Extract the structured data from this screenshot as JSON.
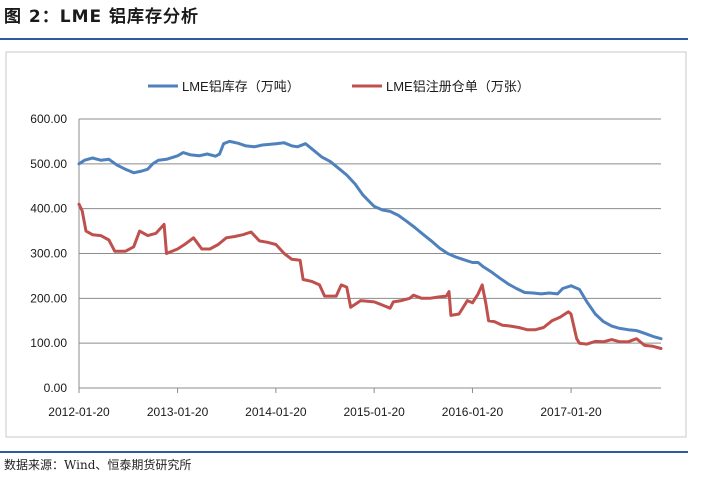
{
  "figure": {
    "title": "图 2：LME 铝库存分析",
    "source": "数据来源：Wind、恒泰期货研究所"
  },
  "chart_data": {
    "type": "line",
    "title": "",
    "xlabel": "",
    "ylabel": "",
    "ylim": [
      0,
      600
    ],
    "yticks": [
      "0.00",
      "100.00",
      "200.00",
      "300.00",
      "400.00",
      "500.00",
      "600.00"
    ],
    "xticks": [
      "2012-01-20",
      "2013-01-20",
      "2014-01-20",
      "2015-01-20",
      "2016-01-20",
      "2017-01-20"
    ],
    "x_range": [
      "2012-01-20",
      "2017-12-20"
    ],
    "grid": "horizontal",
    "legend_position": "top",
    "series": [
      {
        "name": "LME铝库存（万吨）",
        "color": "#4f81bd",
        "points": [
          [
            "2012-01-20",
            500
          ],
          [
            "2012-02-10",
            508
          ],
          [
            "2012-03-10",
            513
          ],
          [
            "2012-04-10",
            508
          ],
          [
            "2012-05-10",
            510
          ],
          [
            "2012-06-10",
            497
          ],
          [
            "2012-07-10",
            488
          ],
          [
            "2012-08-10",
            480
          ],
          [
            "2012-09-10",
            484
          ],
          [
            "2012-10-01",
            488
          ],
          [
            "2012-10-20",
            500
          ],
          [
            "2012-11-10",
            508
          ],
          [
            "2012-12-10",
            510
          ],
          [
            "2013-01-20",
            518
          ],
          [
            "2013-02-10",
            525
          ],
          [
            "2013-03-10",
            520
          ],
          [
            "2013-04-10",
            518
          ],
          [
            "2013-05-10",
            522
          ],
          [
            "2013-06-10",
            517
          ],
          [
            "2013-06-25",
            522
          ],
          [
            "2013-07-10",
            545
          ],
          [
            "2013-08-01",
            550
          ],
          [
            "2013-09-01",
            546
          ],
          [
            "2013-10-01",
            540
          ],
          [
            "2013-11-01",
            538
          ],
          [
            "2013-12-01",
            542
          ],
          [
            "2014-01-20",
            545
          ],
          [
            "2014-02-20",
            547
          ],
          [
            "2014-03-20",
            540
          ],
          [
            "2014-04-10",
            538
          ],
          [
            "2014-05-10",
            545
          ],
          [
            "2014-06-10",
            530
          ],
          [
            "2014-07-10",
            515
          ],
          [
            "2014-08-10",
            505
          ],
          [
            "2014-09-10",
            490
          ],
          [
            "2014-10-10",
            475
          ],
          [
            "2014-11-10",
            455
          ],
          [
            "2014-12-10",
            430
          ],
          [
            "2015-01-20",
            405
          ],
          [
            "2015-02-20",
            397
          ],
          [
            "2015-03-20",
            394
          ],
          [
            "2015-04-20",
            385
          ],
          [
            "2015-05-20",
            372
          ],
          [
            "2015-06-20",
            358
          ],
          [
            "2015-07-20",
            343
          ],
          [
            "2015-08-20",
            328
          ],
          [
            "2015-09-20",
            312
          ],
          [
            "2015-10-20",
            300
          ],
          [
            "2015-11-20",
            292
          ],
          [
            "2015-12-20",
            286
          ],
          [
            "2016-01-20",
            280
          ],
          [
            "2016-02-10",
            280
          ],
          [
            "2016-03-01",
            270
          ],
          [
            "2016-04-01",
            258
          ],
          [
            "2016-05-01",
            245
          ],
          [
            "2016-06-01",
            232
          ],
          [
            "2016-07-01",
            222
          ],
          [
            "2016-08-01",
            213
          ],
          [
            "2016-09-01",
            212
          ],
          [
            "2016-10-01",
            210
          ],
          [
            "2016-11-01",
            212
          ],
          [
            "2016-12-01",
            210
          ],
          [
            "2016-12-20",
            222
          ],
          [
            "2017-01-20",
            228
          ],
          [
            "2017-02-20",
            220
          ],
          [
            "2017-03-20",
            192
          ],
          [
            "2017-04-20",
            165
          ],
          [
            "2017-05-20",
            148
          ],
          [
            "2017-06-20",
            138
          ],
          [
            "2017-07-20",
            133
          ],
          [
            "2017-08-20",
            130
          ],
          [
            "2017-09-20",
            128
          ],
          [
            "2017-10-20",
            122
          ],
          [
            "2017-11-20",
            115
          ],
          [
            "2017-12-20",
            110
          ]
        ]
      },
      {
        "name": "LME铝注册仓单（万张）",
        "color": "#c0504d",
        "points": [
          [
            "2012-01-20",
            410
          ],
          [
            "2012-02-01",
            395
          ],
          [
            "2012-02-15",
            350
          ],
          [
            "2012-03-10",
            342
          ],
          [
            "2012-04-10",
            340
          ],
          [
            "2012-05-10",
            330
          ],
          [
            "2012-06-01",
            305
          ],
          [
            "2012-07-10",
            305
          ],
          [
            "2012-08-10",
            315
          ],
          [
            "2012-09-01",
            350
          ],
          [
            "2012-10-01",
            340
          ],
          [
            "2012-11-01",
            345
          ],
          [
            "2012-12-01",
            365
          ],
          [
            "2012-12-10",
            300
          ],
          [
            "2013-01-20",
            310
          ],
          [
            "2013-02-20",
            322
          ],
          [
            "2013-03-20",
            335
          ],
          [
            "2013-04-20",
            310
          ],
          [
            "2013-05-20",
            310
          ],
          [
            "2013-06-20",
            320
          ],
          [
            "2013-07-20",
            335
          ],
          [
            "2013-08-20",
            338
          ],
          [
            "2013-09-20",
            342
          ],
          [
            "2013-10-20",
            348
          ],
          [
            "2013-11-20",
            328
          ],
          [
            "2013-12-20",
            325
          ],
          [
            "2014-01-20",
            320
          ],
          [
            "2014-02-20",
            300
          ],
          [
            "2014-03-20",
            287
          ],
          [
            "2014-04-20",
            285
          ],
          [
            "2014-05-01",
            242
          ],
          [
            "2014-06-01",
            238
          ],
          [
            "2014-07-01",
            230
          ],
          [
            "2014-07-20",
            205
          ],
          [
            "2014-09-01",
            205
          ],
          [
            "2014-09-20",
            230
          ],
          [
            "2014-10-10",
            225
          ],
          [
            "2014-10-25",
            180
          ],
          [
            "2014-12-01",
            195
          ],
          [
            "2015-01-20",
            192
          ],
          [
            "2015-02-20",
            185
          ],
          [
            "2015-03-20",
            178
          ],
          [
            "2015-04-01",
            192
          ],
          [
            "2015-05-01",
            195
          ],
          [
            "2015-06-01",
            200
          ],
          [
            "2015-06-15",
            207
          ],
          [
            "2015-07-15",
            200
          ],
          [
            "2015-08-15",
            200
          ],
          [
            "2015-09-15",
            203
          ],
          [
            "2015-10-15",
            205
          ],
          [
            "2015-10-25",
            215
          ],
          [
            "2015-11-01",
            162
          ],
          [
            "2015-12-01",
            165
          ],
          [
            "2016-01-01",
            195
          ],
          [
            "2016-01-20",
            190
          ],
          [
            "2016-02-10",
            210
          ],
          [
            "2016-02-25",
            230
          ],
          [
            "2016-03-10",
            188
          ],
          [
            "2016-03-20",
            150
          ],
          [
            "2016-04-10",
            148
          ],
          [
            "2016-05-10",
            140
          ],
          [
            "2016-06-10",
            138
          ],
          [
            "2016-07-10",
            135
          ],
          [
            "2016-08-10",
            130
          ],
          [
            "2016-09-10",
            130
          ],
          [
            "2016-10-10",
            135
          ],
          [
            "2016-11-10",
            150
          ],
          [
            "2016-12-10",
            158
          ],
          [
            "2017-01-10",
            170
          ],
          [
            "2017-01-20",
            165
          ],
          [
            "2017-02-10",
            110
          ],
          [
            "2017-02-20",
            100
          ],
          [
            "2017-03-20",
            98
          ],
          [
            "2017-04-20",
            104
          ],
          [
            "2017-05-20",
            103
          ],
          [
            "2017-06-20",
            108
          ],
          [
            "2017-07-20",
            103
          ],
          [
            "2017-08-20",
            103
          ],
          [
            "2017-09-20",
            110
          ],
          [
            "2017-10-20",
            95
          ],
          [
            "2017-11-20",
            93
          ],
          [
            "2017-12-20",
            88
          ]
        ]
      }
    ]
  }
}
